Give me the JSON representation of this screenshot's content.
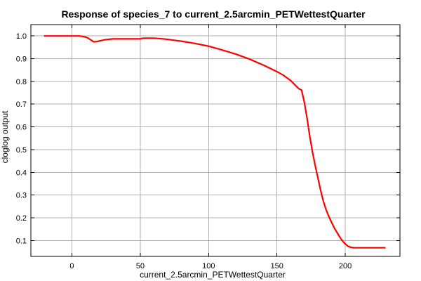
{
  "chart_data": {
    "type": "line",
    "title": "Response of species_7 to current_2.5arcmin_PETWettestQuarter",
    "xlabel": "current_2.5arcmin_PETWettestQuarter",
    "ylabel": "cloglog output",
    "xlim": [
      -30,
      240
    ],
    "ylim": [
      0.03,
      1.05
    ],
    "x_ticks": [
      0,
      50,
      100,
      150,
      200
    ],
    "x_tick_labels": [
      "0",
      "50",
      "100",
      "150",
      "200"
    ],
    "y_ticks": [
      0.1,
      0.2,
      0.3,
      0.4,
      0.5,
      0.6,
      0.7,
      0.8,
      0.9,
      1.0
    ],
    "y_tick_labels": [
      "0.1",
      "0.2",
      "0.3",
      "0.4",
      "0.5",
      "0.6",
      "0.7",
      "0.8",
      "0.9",
      "1.0"
    ],
    "grid": true,
    "line_color": "#ff0000",
    "series": [
      {
        "x": [
          -20,
          -10,
          0,
          5,
          8,
          10,
          12,
          14,
          16,
          18,
          20,
          25,
          30,
          40,
          50,
          52,
          55,
          60,
          65,
          70,
          80,
          90,
          100,
          110,
          120,
          130,
          140,
          150,
          155,
          160,
          163,
          166,
          168,
          170,
          172,
          174,
          176,
          178,
          180,
          182,
          184,
          186,
          188,
          190,
          192,
          194,
          196,
          198,
          200,
          202,
          204,
          206,
          208,
          210,
          215,
          220,
          229
        ],
        "y": [
          1.0,
          1.0,
          1.0,
          1.0,
          0.998,
          0.995,
          0.99,
          0.982,
          0.974,
          0.975,
          0.978,
          0.984,
          0.987,
          0.987,
          0.987,
          0.99,
          0.99,
          0.99,
          0.988,
          0.985,
          0.977,
          0.967,
          0.955,
          0.938,
          0.92,
          0.898,
          0.872,
          0.843,
          0.826,
          0.804,
          0.786,
          0.768,
          0.762,
          0.71,
          0.64,
          0.56,
          0.49,
          0.43,
          0.375,
          0.32,
          0.272,
          0.235,
          0.205,
          0.18,
          0.155,
          0.135,
          0.115,
          0.098,
          0.085,
          0.075,
          0.07,
          0.068,
          0.068,
          0.068,
          0.068,
          0.068,
          0.068
        ]
      }
    ]
  }
}
